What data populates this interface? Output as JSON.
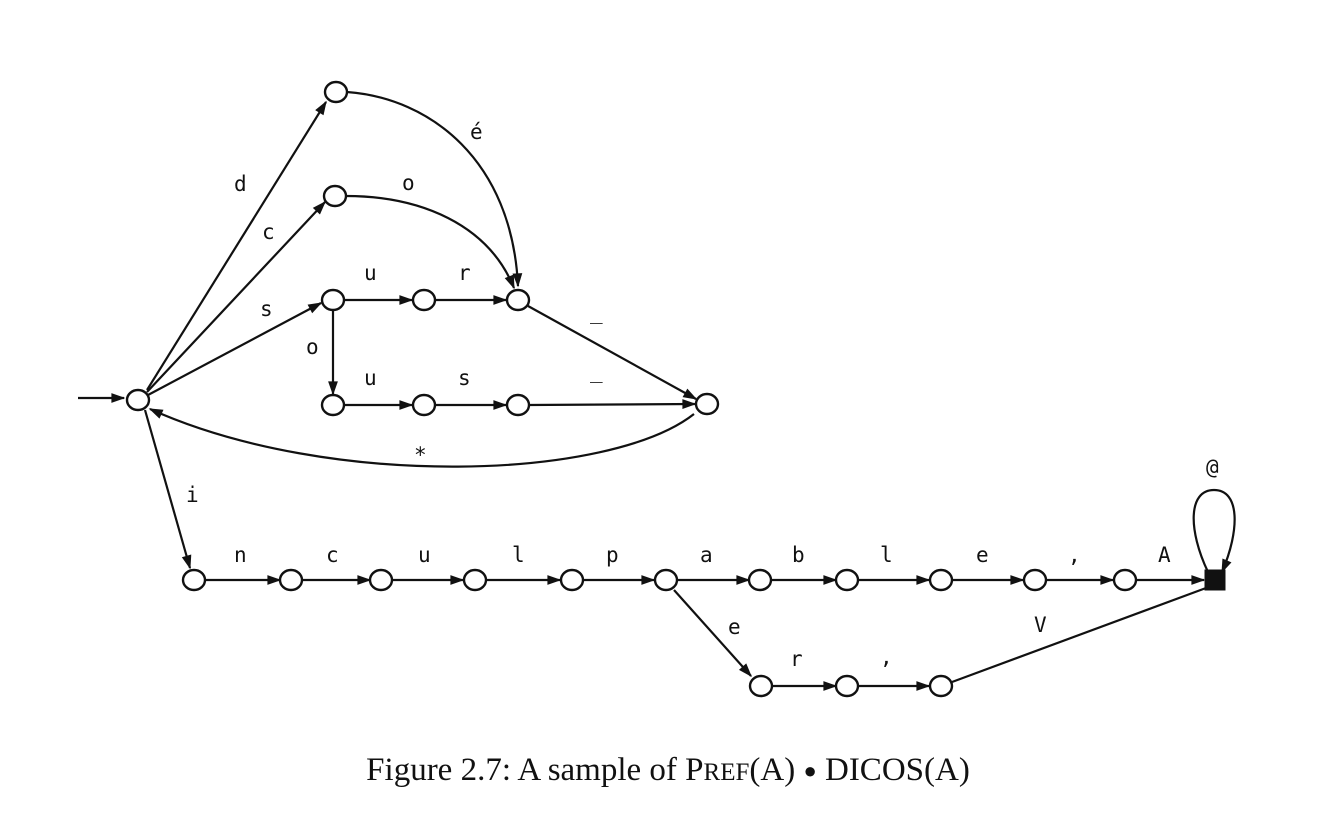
{
  "figure": {
    "caption_prefix": "Figure 2.7:  A sample of ",
    "caption_pref_initial": "P",
    "caption_pref_rest": "REF",
    "caption_pref_arg": "(A) ",
    "caption_bullet": "●",
    "caption_suffix": " DICOS(A)"
  },
  "automaton": {
    "states": [
      {
        "id": "q0",
        "kind": "initial"
      },
      {
        "id": "q1"
      },
      {
        "id": "q2"
      },
      {
        "id": "q3"
      },
      {
        "id": "q4"
      },
      {
        "id": "q5"
      },
      {
        "id": "q6"
      },
      {
        "id": "q7"
      },
      {
        "id": "q8"
      },
      {
        "id": "q9"
      },
      {
        "id": "r1"
      },
      {
        "id": "r2"
      },
      {
        "id": "r3"
      },
      {
        "id": "r4"
      },
      {
        "id": "r5"
      },
      {
        "id": "r6"
      },
      {
        "id": "r7"
      },
      {
        "id": "r8"
      },
      {
        "id": "r9"
      },
      {
        "id": "r10"
      },
      {
        "id": "r11"
      },
      {
        "id": "s1"
      },
      {
        "id": "s2"
      },
      {
        "id": "s3"
      },
      {
        "id": "fin",
        "kind": "final"
      }
    ],
    "transitions": [
      {
        "id": "t-d",
        "from": "q0",
        "to": "q1",
        "label": "d"
      },
      {
        "id": "t-c0",
        "from": "q0",
        "to": "q2",
        "label": "c"
      },
      {
        "id": "t-s0",
        "from": "q0",
        "to": "q3",
        "label": "s"
      },
      {
        "id": "t-e-acute",
        "from": "q1",
        "to": "q5",
        "label": "é"
      },
      {
        "id": "t-o0",
        "from": "q2",
        "to": "q5",
        "label": "o"
      },
      {
        "id": "t-u0",
        "from": "q3",
        "to": "q4",
        "label": "u"
      },
      {
        "id": "t-r0",
        "from": "q4",
        "to": "q5",
        "label": "r"
      },
      {
        "id": "t-o1",
        "from": "q3",
        "to": "q6",
        "label": "o"
      },
      {
        "id": "t-u1",
        "from": "q6",
        "to": "q7",
        "label": "u"
      },
      {
        "id": "t-s1",
        "from": "q7",
        "to": "q8",
        "label": "s"
      },
      {
        "id": "t-dash0",
        "from": "q5",
        "to": "q9",
        "label": "_"
      },
      {
        "id": "t-dash1",
        "from": "q8",
        "to": "q9",
        "label": "_"
      },
      {
        "id": "t-star",
        "from": "q9",
        "to": "q0",
        "label": "*"
      },
      {
        "id": "t-i",
        "from": "q0",
        "to": "r1",
        "label": "i"
      },
      {
        "id": "t-n",
        "from": "r1",
        "to": "r2",
        "label": "n"
      },
      {
        "id": "t-c1",
        "from": "r2",
        "to": "r3",
        "label": "c"
      },
      {
        "id": "t-u2",
        "from": "r3",
        "to": "r4",
        "label": "u"
      },
      {
        "id": "t-l0",
        "from": "r4",
        "to": "r5",
        "label": "l"
      },
      {
        "id": "t-p",
        "from": "r5",
        "to": "r6",
        "label": "p"
      },
      {
        "id": "t-a",
        "from": "r6",
        "to": "r7",
        "label": "a"
      },
      {
        "id": "t-b",
        "from": "r7",
        "to": "r8",
        "label": "b"
      },
      {
        "id": "t-l1",
        "from": "r8",
        "to": "r9",
        "label": "l"
      },
      {
        "id": "t-e0",
        "from": "r9",
        "to": "r10",
        "label": "e"
      },
      {
        "id": "t-comma0",
        "from": "r10",
        "to": "r11",
        "label": ","
      },
      {
        "id": "t-A",
        "from": "r11",
        "to": "fin",
        "label": "A"
      },
      {
        "id": "t-e1",
        "from": "r6",
        "to": "s1",
        "label": "e"
      },
      {
        "id": "t-r1",
        "from": "s1",
        "to": "s2",
        "label": "r"
      },
      {
        "id": "t-comma1",
        "from": "s2",
        "to": "s3",
        "label": ","
      },
      {
        "id": "t-V",
        "from": "s3",
        "to": "fin",
        "label": "V"
      },
      {
        "id": "t-at",
        "from": "fin",
        "to": "fin",
        "label": "@"
      }
    ]
  }
}
